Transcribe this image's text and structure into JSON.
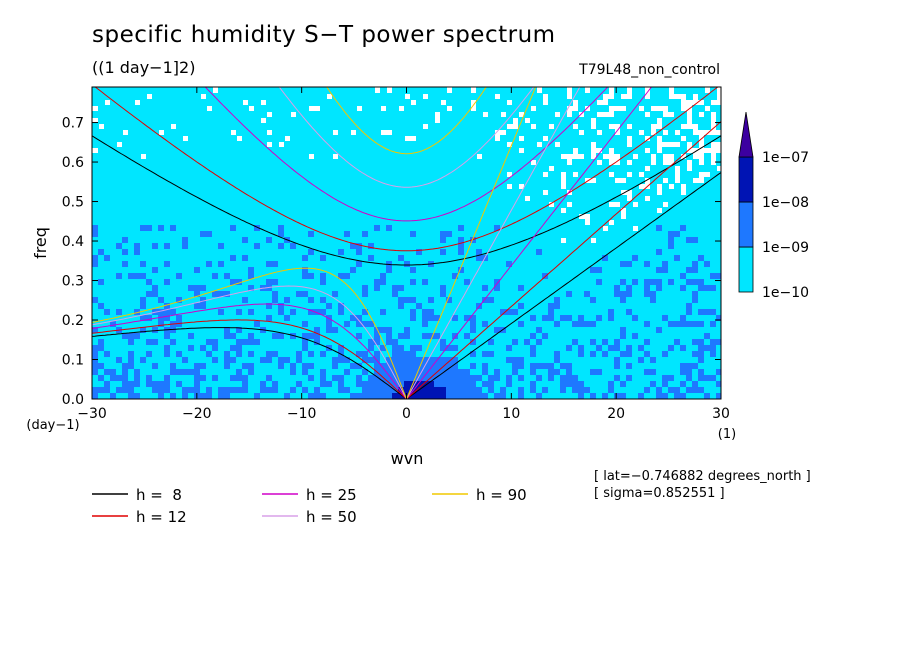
{
  "header": {
    "title": "specific humidity S−T power spectrum",
    "subtitle": "((1 day−1]2)",
    "run_name": "T79L48_non_control"
  },
  "meta": {
    "lat": "[ lat=−0.746882 degrees_north ]",
    "sigma": "[ sigma=0.852551 ]"
  },
  "chart_data": {
    "type": "heatmap",
    "title": "specific humidity S−T power spectrum",
    "subtitle": "((1 day−1]2)",
    "xlabel": "wvn",
    "ylabel": "freq",
    "x_unit": "(1)",
    "y_unit": "(day−1)",
    "xlim": [
      -30,
      30
    ],
    "ylim": [
      0,
      0.79
    ],
    "x_ticks": [
      -30,
      -20,
      -10,
      0,
      10,
      20,
      30
    ],
    "x_tick_labels": [
      "−30",
      "−20",
      "−10",
      "0",
      "10",
      "20",
      "30"
    ],
    "y_ticks": [
      0,
      0.1,
      0.2,
      0.3,
      0.4,
      0.5,
      0.6,
      0.7
    ],
    "y_tick_labels": [
      "0.0",
      "0.1",
      "0.2",
      "0.3",
      "0.4",
      "0.5",
      "0.6",
      "0.7"
    ],
    "colorbar": {
      "levels": [
        "1e−10",
        "1e−09",
        "1e−08",
        "1e−07"
      ],
      "colors": [
        "#00e6ff",
        "#1e78ff",
        "#0014b4",
        "#3c00a0"
      ],
      "extend": "max"
    },
    "dispersion_curves": [
      {
        "name": "h =  8",
        "h": 8,
        "color": "#000000"
      },
      {
        "name": "h = 12",
        "h": 12,
        "color": "#e00000"
      },
      {
        "name": "h = 25",
        "h": 25,
        "color": "#d000c8"
      },
      {
        "name": "h = 50",
        "h": 50,
        "color": "#d8a0e8"
      },
      {
        "name": "h = 90",
        "h": 90,
        "color": "#f0c800"
      }
    ],
    "grid": false,
    "legend_position": "bottom"
  }
}
